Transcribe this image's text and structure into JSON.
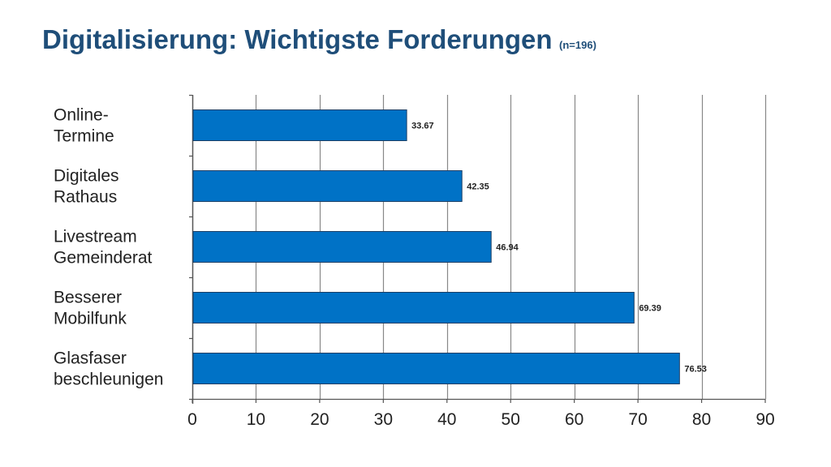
{
  "header": {
    "title": "Digitalisierung: Wichtigste Forderungen",
    "sample": "(n=196)"
  },
  "colors": {
    "title": "#1f4e79",
    "bar": "#0072c6",
    "bar_outline": "#1a3f66",
    "grid": "#888888",
    "axis": "#555555"
  },
  "chart_data": {
    "type": "bar",
    "orientation": "horizontal",
    "title": "Digitalisierung: Wichtigste Forderungen",
    "subtitle": "(n=196)",
    "categories": [
      [
        "Online-",
        "Termine"
      ],
      [
        "Digitales",
        "Rathaus"
      ],
      [
        "Livestream",
        "Gemeinderat"
      ],
      [
        "Besserer",
        "Mobilfunk"
      ],
      [
        "Glasfaser",
        "beschleunigen"
      ]
    ],
    "values": [
      33.67,
      42.35,
      46.94,
      69.39,
      76.53
    ],
    "value_labels": [
      "33.67",
      "42.35",
      "46.94",
      "69.39",
      "76.53"
    ],
    "xlim": [
      0,
      90
    ],
    "xticks": [
      0,
      10,
      20,
      30,
      40,
      50,
      60,
      70,
      80,
      90
    ],
    "grid": true,
    "xlabel": "",
    "ylabel": ""
  }
}
